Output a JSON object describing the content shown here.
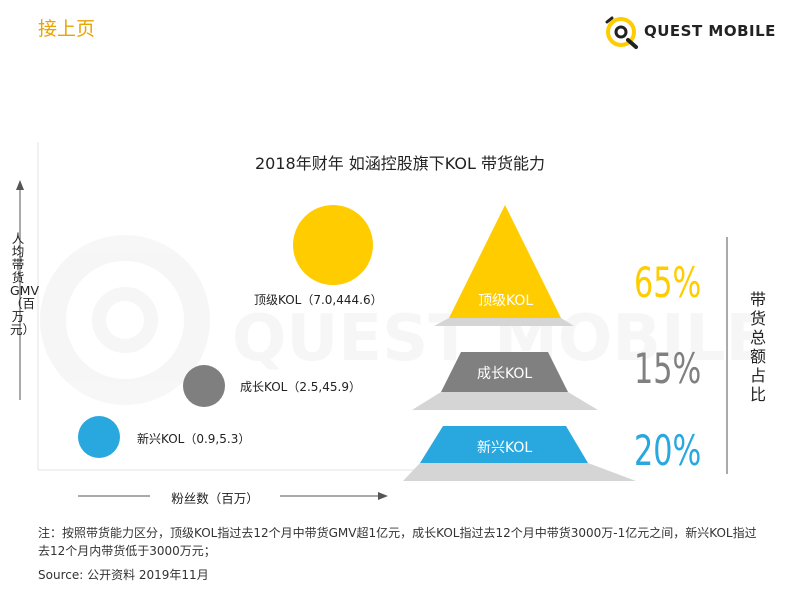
{
  "header": {
    "title": "接上页"
  },
  "logo": {
    "text": "QUEST MOBILE"
  },
  "watermark": {
    "text": "QUEST MOBILE"
  },
  "colors": {
    "accent": "#e8a400",
    "top": "#ffcc00",
    "growth": "#808080",
    "emerging": "#29a8e0",
    "text": "#222222"
  },
  "chart_data": {
    "type": "scatter",
    "title": "2018年财年 如涵控股旗下KOL 带货能力",
    "xlabel": "粉丝数（百万）",
    "ylabel": "人均带货GMV（百万元）",
    "points": [
      {
        "label": "顶级KOL（7.0,444.6）",
        "x": 7.0,
        "y": 444.6,
        "color": "#ffcc00"
      },
      {
        "label": "成长KOL（2.5,45.9）",
        "x": 2.5,
        "y": 45.9,
        "color": "#808080"
      },
      {
        "label": "新兴KOL（0.9,5.3）",
        "x": 0.9,
        "y": 5.3,
        "color": "#29a8e0"
      }
    ],
    "share": {
      "label": "带货总额占比",
      "tiers": [
        {
          "name": "顶级KOL",
          "value": 65,
          "display": "65%",
          "color": "#ffcc00"
        },
        {
          "name": "成长KOL",
          "value": 15,
          "display": "15%",
          "color": "#808080"
        },
        {
          "name": "新兴KOL",
          "value": 20,
          "display": "20%",
          "color": "#29a8e0"
        }
      ]
    }
  },
  "note": "注：按照带货能力区分，顶级KOL指过去12个月中带货GMV超1亿元，成长KOL指过去12个月中带货3000万-1亿元之间，新兴KOL指过去12个月内带货低于3000万元；",
  "source": "Source:   公开资料 2019年11月"
}
